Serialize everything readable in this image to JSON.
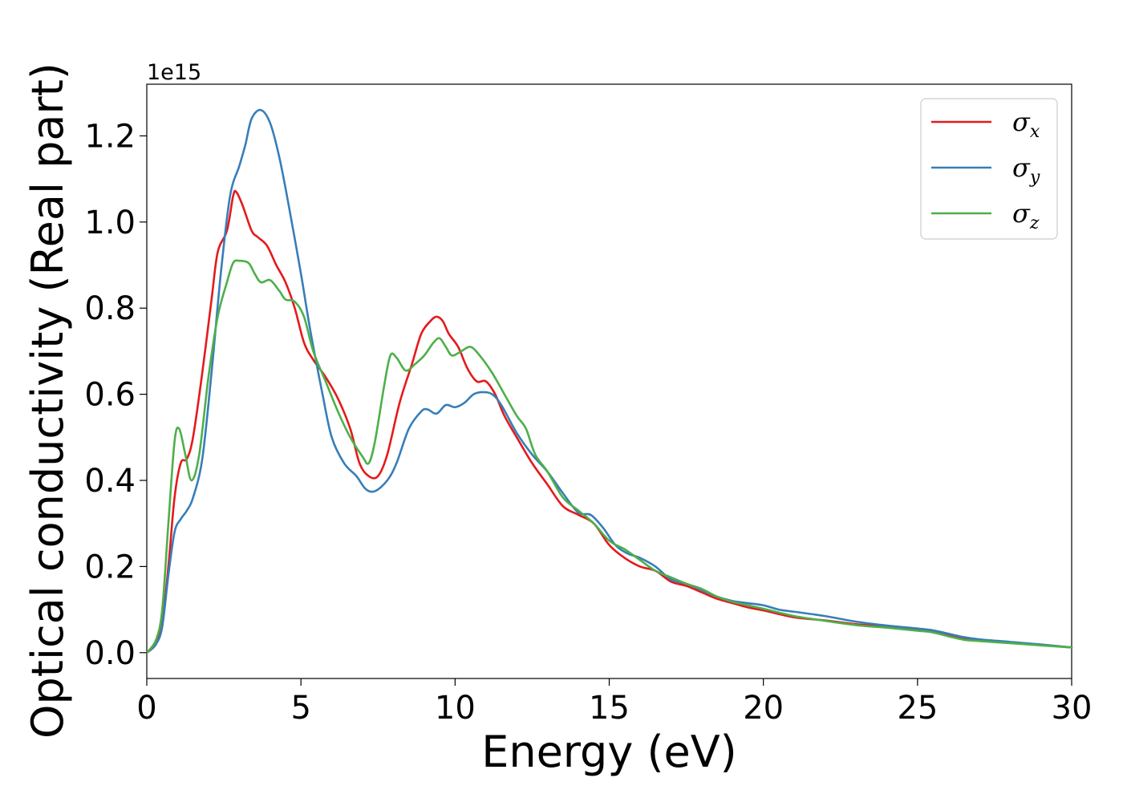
{
  "chart_data": {
    "type": "line",
    "title": "",
    "xlabel": "Energy (eV)",
    "ylabel": "Optical conductivity (Real part)",
    "y_offset_label": "1e15",
    "y_multiplier": 1000000000000000.0,
    "xlim": [
      0,
      30
    ],
    "ylim": [
      -0.06,
      1.32
    ],
    "xticks": [
      0,
      5,
      10,
      15,
      20,
      25,
      30
    ],
    "xtick_labels": [
      "0",
      "5",
      "10",
      "15",
      "20",
      "25",
      "30"
    ],
    "yticks": [
      0.0,
      0.2,
      0.4,
      0.6,
      0.8,
      1.0,
      1.2
    ],
    "ytick_labels": [
      "0.0",
      "0.2",
      "0.4",
      "0.6",
      "0.8",
      "1.0",
      "1.2"
    ],
    "grid": false,
    "legend_position": "top-right",
    "series": [
      {
        "name": "σx",
        "symbol": "σ",
        "subscript": "x",
        "color": "#e41a1c",
        "points": [
          [
            0,
            0
          ],
          [
            0.3,
            0.02
          ],
          [
            0.5,
            0.07
          ],
          [
            0.7,
            0.2
          ],
          [
            0.9,
            0.36
          ],
          [
            1.1,
            0.44
          ],
          [
            1.3,
            0.45
          ],
          [
            1.5,
            0.5
          ],
          [
            1.8,
            0.65
          ],
          [
            2.1,
            0.82
          ],
          [
            2.3,
            0.93
          ],
          [
            2.6,
            0.98
          ],
          [
            2.8,
            1.06
          ],
          [
            2.9,
            1.07
          ],
          [
            3.1,
            1.04
          ],
          [
            3.4,
            0.98
          ],
          [
            3.6,
            0.965
          ],
          [
            3.9,
            0.945
          ],
          [
            4.2,
            0.9
          ],
          [
            4.5,
            0.86
          ],
          [
            4.8,
            0.8
          ],
          [
            5.1,
            0.72
          ],
          [
            5.4,
            0.68
          ],
          [
            5.8,
            0.64
          ],
          [
            6.2,
            0.59
          ],
          [
            6.6,
            0.52
          ],
          [
            6.9,
            0.44
          ],
          [
            7.2,
            0.41
          ],
          [
            7.5,
            0.41
          ],
          [
            7.8,
            0.46
          ],
          [
            8.2,
            0.58
          ],
          [
            8.6,
            0.67
          ],
          [
            8.9,
            0.74
          ],
          [
            9.2,
            0.77
          ],
          [
            9.4,
            0.78
          ],
          [
            9.6,
            0.77
          ],
          [
            9.8,
            0.74
          ],
          [
            10.1,
            0.71
          ],
          [
            10.4,
            0.66
          ],
          [
            10.7,
            0.63
          ],
          [
            11.0,
            0.63
          ],
          [
            11.3,
            0.6
          ],
          [
            11.6,
            0.55
          ],
          [
            12.0,
            0.5
          ],
          [
            12.5,
            0.44
          ],
          [
            13.0,
            0.39
          ],
          [
            13.5,
            0.34
          ],
          [
            14.0,
            0.32
          ],
          [
            14.5,
            0.3
          ],
          [
            15.0,
            0.25
          ],
          [
            15.5,
            0.22
          ],
          [
            16.0,
            0.2
          ],
          [
            16.5,
            0.19
          ],
          [
            17.0,
            0.165
          ],
          [
            17.5,
            0.155
          ],
          [
            18.0,
            0.14
          ],
          [
            18.5,
            0.125
          ],
          [
            19.0,
            0.115
          ],
          [
            19.5,
            0.105
          ],
          [
            20.0,
            0.098
          ],
          [
            21.0,
            0.082
          ],
          [
            22.0,
            0.075
          ],
          [
            23.0,
            0.066
          ],
          [
            24.0,
            0.06
          ],
          [
            25.0,
            0.052
          ],
          [
            25.5,
            0.048
          ],
          [
            26.0,
            0.04
          ],
          [
            26.5,
            0.032
          ],
          [
            27.0,
            0.029
          ],
          [
            28.0,
            0.024
          ],
          [
            29.0,
            0.018
          ],
          [
            30.0,
            0.012
          ]
        ]
      },
      {
        "name": "σy",
        "symbol": "σ",
        "subscript": "y",
        "color": "#377eb8",
        "points": [
          [
            0,
            0
          ],
          [
            0.3,
            0.02
          ],
          [
            0.5,
            0.06
          ],
          [
            0.7,
            0.18
          ],
          [
            0.9,
            0.28
          ],
          [
            1.1,
            0.31
          ],
          [
            1.3,
            0.33
          ],
          [
            1.5,
            0.36
          ],
          [
            1.8,
            0.45
          ],
          [
            2.1,
            0.65
          ],
          [
            2.4,
            0.88
          ],
          [
            2.7,
            1.06
          ],
          [
            3.0,
            1.13
          ],
          [
            3.2,
            1.18
          ],
          [
            3.4,
            1.24
          ],
          [
            3.7,
            1.26
          ],
          [
            4.0,
            1.23
          ],
          [
            4.3,
            1.15
          ],
          [
            4.6,
            1.04
          ],
          [
            5.0,
            0.88
          ],
          [
            5.3,
            0.75
          ],
          [
            5.7,
            0.6
          ],
          [
            6.0,
            0.5
          ],
          [
            6.4,
            0.44
          ],
          [
            6.8,
            0.41
          ],
          [
            7.1,
            0.38
          ],
          [
            7.4,
            0.375
          ],
          [
            7.8,
            0.4
          ],
          [
            8.1,
            0.44
          ],
          [
            8.5,
            0.52
          ],
          [
            8.9,
            0.56
          ],
          [
            9.1,
            0.565
          ],
          [
            9.4,
            0.555
          ],
          [
            9.7,
            0.575
          ],
          [
            10.0,
            0.57
          ],
          [
            10.3,
            0.58
          ],
          [
            10.6,
            0.6
          ],
          [
            10.9,
            0.605
          ],
          [
            11.2,
            0.6
          ],
          [
            11.5,
            0.575
          ],
          [
            12.0,
            0.51
          ],
          [
            12.5,
            0.46
          ],
          [
            13.0,
            0.42
          ],
          [
            13.5,
            0.37
          ],
          [
            14.0,
            0.325
          ],
          [
            14.4,
            0.32
          ],
          [
            14.8,
            0.29
          ],
          [
            15.2,
            0.25
          ],
          [
            15.6,
            0.23
          ],
          [
            16.0,
            0.22
          ],
          [
            16.5,
            0.2
          ],
          [
            17.0,
            0.17
          ],
          [
            17.5,
            0.16
          ],
          [
            18.0,
            0.145
          ],
          [
            18.5,
            0.13
          ],
          [
            19.0,
            0.12
          ],
          [
            19.5,
            0.115
          ],
          [
            20.0,
            0.11
          ],
          [
            20.5,
            0.1
          ],
          [
            21.0,
            0.095
          ],
          [
            22.0,
            0.085
          ],
          [
            23.0,
            0.072
          ],
          [
            24.0,
            0.063
          ],
          [
            25.0,
            0.056
          ],
          [
            25.5,
            0.052
          ],
          [
            26.0,
            0.044
          ],
          [
            26.5,
            0.036
          ],
          [
            27.0,
            0.031
          ],
          [
            28.0,
            0.025
          ],
          [
            29.0,
            0.019
          ],
          [
            30.0,
            0.012
          ]
        ]
      },
      {
        "name": "σz",
        "symbol": "σ",
        "subscript": "z",
        "color": "#4daf4a",
        "points": [
          [
            0,
            0
          ],
          [
            0.3,
            0.03
          ],
          [
            0.5,
            0.1
          ],
          [
            0.7,
            0.3
          ],
          [
            0.9,
            0.49
          ],
          [
            1.05,
            0.52
          ],
          [
            1.25,
            0.46
          ],
          [
            1.45,
            0.4
          ],
          [
            1.7,
            0.46
          ],
          [
            2.0,
            0.64
          ],
          [
            2.3,
            0.78
          ],
          [
            2.6,
            0.86
          ],
          [
            2.8,
            0.905
          ],
          [
            3.0,
            0.91
          ],
          [
            3.3,
            0.905
          ],
          [
            3.5,
            0.88
          ],
          [
            3.7,
            0.86
          ],
          [
            4.0,
            0.865
          ],
          [
            4.3,
            0.84
          ],
          [
            4.5,
            0.82
          ],
          [
            4.8,
            0.815
          ],
          [
            5.1,
            0.78
          ],
          [
            5.4,
            0.7
          ],
          [
            5.8,
            0.63
          ],
          [
            6.2,
            0.56
          ],
          [
            6.6,
            0.5
          ],
          [
            7.0,
            0.455
          ],
          [
            7.2,
            0.44
          ],
          [
            7.4,
            0.49
          ],
          [
            7.7,
            0.62
          ],
          [
            7.9,
            0.69
          ],
          [
            8.1,
            0.685
          ],
          [
            8.4,
            0.655
          ],
          [
            8.7,
            0.67
          ],
          [
            9.0,
            0.69
          ],
          [
            9.3,
            0.72
          ],
          [
            9.5,
            0.73
          ],
          [
            9.7,
            0.71
          ],
          [
            9.9,
            0.69
          ],
          [
            10.2,
            0.7
          ],
          [
            10.5,
            0.71
          ],
          [
            10.8,
            0.69
          ],
          [
            11.2,
            0.65
          ],
          [
            11.6,
            0.6
          ],
          [
            12.0,
            0.55
          ],
          [
            12.3,
            0.52
          ],
          [
            12.6,
            0.46
          ],
          [
            13.0,
            0.42
          ],
          [
            13.5,
            0.36
          ],
          [
            14.0,
            0.33
          ],
          [
            14.5,
            0.3
          ],
          [
            15.0,
            0.26
          ],
          [
            15.5,
            0.24
          ],
          [
            16.0,
            0.215
          ],
          [
            16.5,
            0.19
          ],
          [
            17.0,
            0.175
          ],
          [
            17.5,
            0.16
          ],
          [
            18.0,
            0.148
          ],
          [
            18.5,
            0.13
          ],
          [
            19.0,
            0.118
          ],
          [
            19.5,
            0.11
          ],
          [
            20.0,
            0.102
          ],
          [
            21.0,
            0.085
          ],
          [
            22.0,
            0.074
          ],
          [
            23.0,
            0.064
          ],
          [
            24.0,
            0.058
          ],
          [
            25.0,
            0.051
          ],
          [
            25.5,
            0.047
          ],
          [
            26.0,
            0.038
          ],
          [
            26.5,
            0.03
          ],
          [
            27.0,
            0.027
          ],
          [
            28.0,
            0.022
          ],
          [
            29.0,
            0.017
          ],
          [
            30.0,
            0.012
          ]
        ]
      }
    ]
  }
}
